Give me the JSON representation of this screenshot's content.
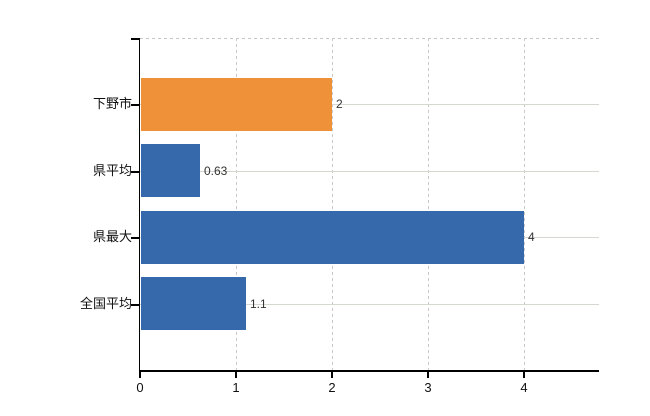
{
  "chart_data": {
    "type": "bar",
    "orientation": "horizontal",
    "title": "",
    "xlabel": "",
    "ylabel": "",
    "categories": [
      "下野市",
      "県平均",
      "県最大",
      "全国平均"
    ],
    "values": [
      2,
      0.63,
      4,
      1.1
    ],
    "value_labels": [
      "2",
      "0.63",
      "4",
      "1.1"
    ],
    "bar_colors": [
      "#ee9139",
      "#3569ac",
      "#3569ac",
      "#3569ac"
    ],
    "highlight_color": "#ee9139",
    "base_color": "#3569ac",
    "x_ticks": [
      0,
      1,
      2,
      3,
      4
    ],
    "x_tick_labels": [
      "0",
      "1",
      "2",
      "3",
      "4"
    ],
    "xlim": [
      0,
      4.78
    ],
    "legend": "none",
    "grid": {
      "vertical_style": "dashed",
      "vertical_color": "#c8c8c8",
      "horizontal_style": "solid",
      "horizontal_color": "#d3d9d0",
      "top_border_style": "dashed",
      "top_border_color": "#c4c4c4"
    },
    "axis_color": "#000000",
    "value_label_color": "#333333",
    "tick_label_color": "#111111",
    "background_color": "#ffffff"
  }
}
